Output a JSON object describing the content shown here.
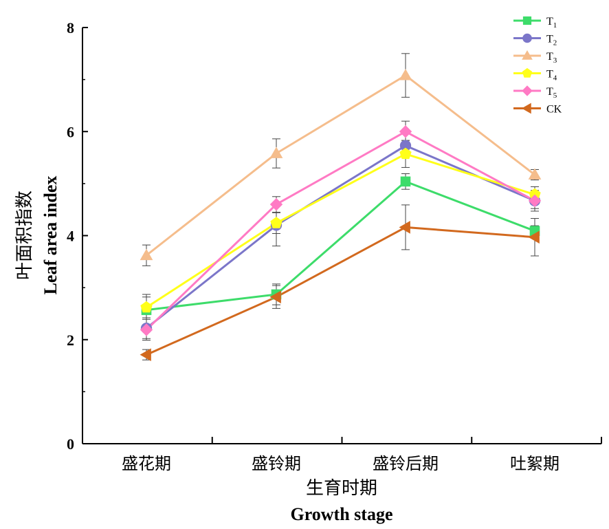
{
  "chart_data": {
    "type": "line",
    "categories": [
      "盛花期",
      "盛铃期",
      "盛铃后期",
      "吐絮期"
    ],
    "xlabel_cn": "生育时期",
    "xlabel_en": "Growth stage",
    "ylabel_cn": "叶面积指数",
    "ylabel_en": "Leaf area index",
    "ylim": [
      0,
      8
    ],
    "yticks": [
      "0",
      "2",
      "4",
      "6",
      "8"
    ],
    "legend_position": "top-right",
    "series": [
      {
        "name": "T",
        "sub": "1",
        "color": "#3ddc6a",
        "marker": "square",
        "values": [
          2.57,
          2.87,
          5.04,
          4.09
        ],
        "errors": [
          0.3,
          0.2,
          0.15,
          0.1
        ]
      },
      {
        "name": "T",
        "sub": "2",
        "color": "#7b76c9",
        "marker": "circle",
        "values": [
          2.22,
          4.2,
          5.73,
          4.67
        ],
        "errors": [
          0.2,
          0.4,
          0.1,
          0.2
        ]
      },
      {
        "name": "T",
        "sub": "3",
        "color": "#f5bd8c",
        "marker": "triangle-up",
        "values": [
          3.62,
          5.58,
          7.08,
          5.17
        ],
        "errors": [
          0.2,
          0.28,
          0.42,
          0.1
        ]
      },
      {
        "name": "T",
        "sub": "4",
        "color": "#ffff1a",
        "marker": "pentagon",
        "values": [
          2.62,
          4.24,
          5.57,
          4.79
        ],
        "errors": [
          0.2,
          0.2,
          0.26,
          0.15
        ]
      },
      {
        "name": "T",
        "sub": "5",
        "color": "#ff7ac4",
        "marker": "diamond",
        "values": [
          2.19,
          4.6,
          6.0,
          4.67
        ],
        "errors": [
          0.2,
          0.15,
          0.2,
          0.15
        ]
      },
      {
        "name": "CK",
        "sub": "",
        "color": "#d2691e",
        "marker": "triangle-left",
        "values": [
          1.71,
          2.82,
          4.16,
          3.97
        ],
        "errors": [
          0.1,
          0.22,
          0.43,
          0.36
        ]
      }
    ]
  }
}
